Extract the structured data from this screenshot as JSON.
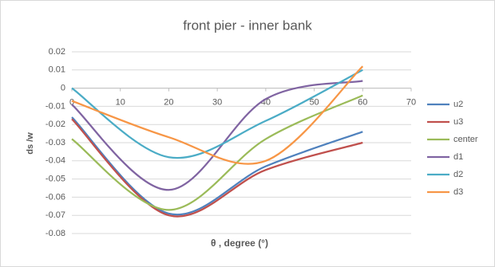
{
  "chart_data": {
    "type": "line",
    "title": "front pier - inner bank",
    "x_label": "θ , degree  (°)",
    "y_label": "ds /w",
    "x": [
      0,
      20,
      40,
      60
    ],
    "series": [
      {
        "name": "u2",
        "color": "#4f81bd",
        "values": [
          -0.016,
          -0.069,
          -0.043,
          -0.024
        ]
      },
      {
        "name": "u3",
        "color": "#c0504d",
        "values": [
          -0.017,
          -0.07,
          -0.045,
          -0.03
        ]
      },
      {
        "name": "center",
        "color": "#9bbb59",
        "values": [
          -0.028,
          -0.067,
          -0.028,
          -0.004
        ]
      },
      {
        "name": "d1",
        "color": "#8064a2",
        "values": [
          -0.009,
          -0.056,
          -0.006,
          0.004
        ]
      },
      {
        "name": "d2",
        "color": "#4bacc6",
        "values": [
          0,
          -0.038,
          -0.018,
          0.01
        ]
      },
      {
        "name": "d3",
        "color": "#f79646",
        "values": [
          -0.007,
          -0.027,
          -0.04,
          0.012
        ]
      }
    ],
    "xlim": [
      0,
      70
    ],
    "xticks": [
      0,
      10,
      20,
      30,
      40,
      50,
      60,
      70
    ],
    "ylim": [
      -0.08,
      0.02
    ],
    "yticks": [
      0.02,
      0.01,
      0,
      -0.01,
      -0.02,
      -0.03,
      -0.04,
      -0.05,
      -0.06,
      -0.07,
      -0.08
    ],
    "grid": true,
    "legend": "right"
  }
}
